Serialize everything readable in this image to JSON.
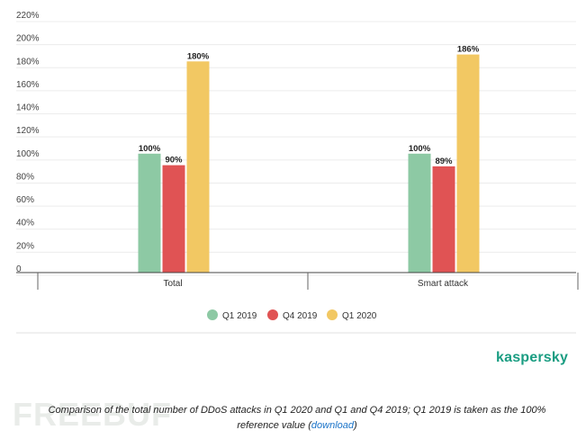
{
  "chart_data": {
    "type": "bar",
    "categories": [
      "Total",
      "Smart attack"
    ],
    "series": [
      {
        "name": "Q1 2019",
        "color": "#8dc9a4",
        "values": [
          100,
          100
        ],
        "labels": [
          "100%",
          "100%"
        ]
      },
      {
        "name": "Q4 2019",
        "color": "#e05354",
        "values": [
          90,
          89
        ],
        "labels": [
          "90%",
          "89%"
        ]
      },
      {
        "name": "Q1 2020",
        "color": "#f2c863",
        "values": [
          180,
          186
        ],
        "labels": [
          "180%",
          "186%"
        ]
      }
    ],
    "yticks": [
      "0",
      "20%",
      "40%",
      "60%",
      "80%",
      "100%",
      "120%",
      "140%",
      "160%",
      "180%",
      "200%",
      "220%"
    ],
    "ylim": [
      0,
      220
    ],
    "legend_position": "bottom-center"
  },
  "brand": "kaspersky",
  "watermark": "FREEBUF",
  "caption": {
    "text": "Comparison of the total number of DDoS attacks in Q1 2020 and Q1 and Q4 2019; Q1 2019 is taken as the 100% reference value (",
    "link": "download",
    "end": ")"
  }
}
